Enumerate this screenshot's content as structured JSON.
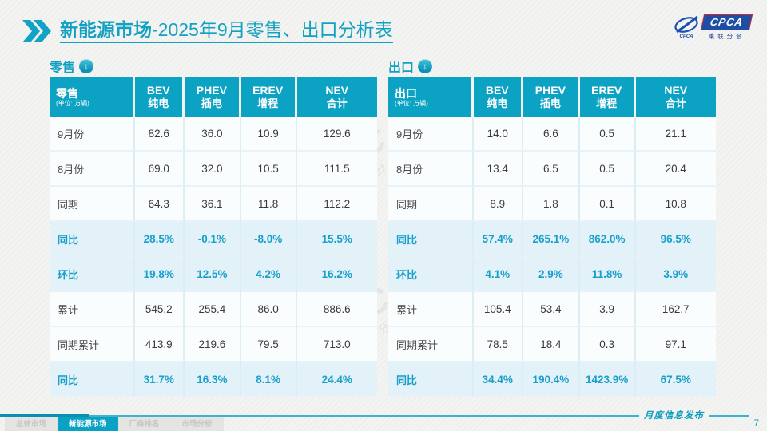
{
  "header": {
    "title_emphasis": "新能源市场",
    "title_rest": "-2025年9月零售、出口分析表",
    "logo_text": "CPCA",
    "logo_subtext": "乘联分会"
  },
  "colors": {
    "accent_teal": "#0ba2c3",
    "highlight_row_bg": "#e3f1f8",
    "highlight_text": "#189fca",
    "logo_blue": "#1e4da6"
  },
  "watermark": {
    "brand": "CPCA",
    "name": "乘联分会"
  },
  "tables": [
    {
      "section_label": "零售",
      "header_label": "零售",
      "unit": "(单位: 万辆)",
      "columns": [
        {
          "en": "BEV",
          "cn": "纯电"
        },
        {
          "en": "PHEV",
          "cn": "插电"
        },
        {
          "en": "EREV",
          "cn": "增程"
        },
        {
          "en": "NEV",
          "cn": "合计"
        }
      ],
      "rows": [
        {
          "label": "9月份",
          "values": [
            "82.6",
            "36.0",
            "10.9",
            "129.6"
          ],
          "highlight": false
        },
        {
          "label": "8月份",
          "values": [
            "69.0",
            "32.0",
            "10.5",
            "111.5"
          ],
          "highlight": false
        },
        {
          "label": "同期",
          "values": [
            "64.3",
            "36.1",
            "11.8",
            "112.2"
          ],
          "highlight": false
        },
        {
          "label": "同比",
          "values": [
            "28.5%",
            "-0.1%",
            "-8.0%",
            "15.5%"
          ],
          "highlight": true
        },
        {
          "label": "环比",
          "values": [
            "19.8%",
            "12.5%",
            "4.2%",
            "16.2%"
          ],
          "highlight": true
        },
        {
          "label": "累计",
          "values": [
            "545.2",
            "255.4",
            "86.0",
            "886.6"
          ],
          "highlight": false
        },
        {
          "label": "同期累计",
          "values": [
            "413.9",
            "219.6",
            "79.5",
            "713.0"
          ],
          "highlight": false
        },
        {
          "label": "同比",
          "values": [
            "31.7%",
            "16.3%",
            "8.1%",
            "24.4%"
          ],
          "highlight": true
        }
      ]
    },
    {
      "section_label": "出口",
      "header_label": "出口",
      "unit": "(单位: 万辆)",
      "columns": [
        {
          "en": "BEV",
          "cn": "纯电"
        },
        {
          "en": "PHEV",
          "cn": "插电"
        },
        {
          "en": "EREV",
          "cn": "增程"
        },
        {
          "en": "NEV",
          "cn": "合计"
        }
      ],
      "rows": [
        {
          "label": "9月份",
          "values": [
            "14.0",
            "6.6",
            "0.5",
            "21.1"
          ],
          "highlight": false
        },
        {
          "label": "8月份",
          "values": [
            "13.4",
            "6.5",
            "0.5",
            "20.4"
          ],
          "highlight": false
        },
        {
          "label": "同期",
          "values": [
            "8.9",
            "1.8",
            "0.1",
            "10.8"
          ],
          "highlight": false
        },
        {
          "label": "同比",
          "values": [
            "57.4%",
            "265.1%",
            "862.0%",
            "96.5%"
          ],
          "highlight": true
        },
        {
          "label": "环比",
          "values": [
            "4.1%",
            "2.9%",
            "11.8%",
            "3.9%"
          ],
          "highlight": true
        },
        {
          "label": "累计",
          "values": [
            "105.4",
            "53.4",
            "3.9",
            "162.7"
          ],
          "highlight": false
        },
        {
          "label": "同期累计",
          "values": [
            "78.5",
            "18.4",
            "0.3",
            "97.1"
          ],
          "highlight": false
        },
        {
          "label": "同比",
          "values": [
            "34.4%",
            "190.4%",
            "1423.9%",
            "67.5%"
          ],
          "highlight": true
        }
      ]
    }
  ],
  "footer": {
    "tabs": [
      {
        "label": "总体市场",
        "active": false
      },
      {
        "label": "新能源市场",
        "active": true
      },
      {
        "label": "厂商排名",
        "active": false
      },
      {
        "label": "市场分析",
        "active": false
      }
    ],
    "release_label": "月度信息发布",
    "page_number": "7"
  }
}
